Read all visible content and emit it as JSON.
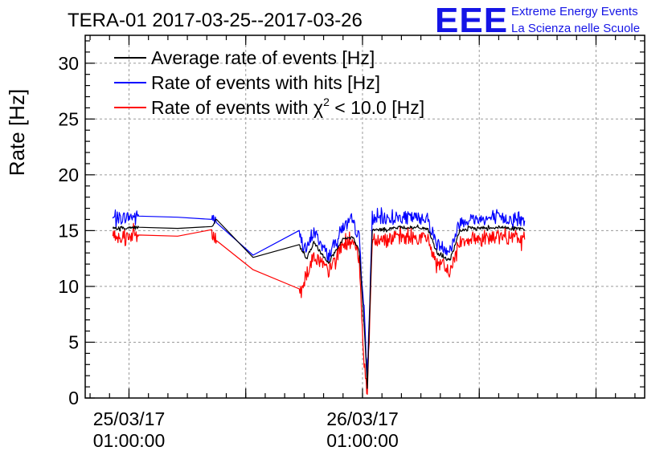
{
  "chart_data": {
    "type": "line",
    "title": "TERA-01 2017-03-25--2017-03-26",
    "ylabel": "Rate [Hz]",
    "xlabel": "",
    "ylim": [
      0,
      32.5
    ],
    "yticks": [
      "0",
      "5",
      "10",
      "15",
      "20",
      "25",
      "30"
    ],
    "xlim": [
      "2017-03-24 20:30:00",
      "2017-03-27 06:00:00"
    ],
    "x_date_ticks": [
      {
        "line1": "25/03/17",
        "line2": "01:00:00",
        "x": "2017-03-25 01:00:00"
      },
      {
        "line1": "26/03/17",
        "line2": "01:00:00",
        "x": "2017-03-26 01:00:00"
      }
    ],
    "grid": true,
    "legend_position": "top-left",
    "series": [
      {
        "name": "Average rate of events [Hz]",
        "name_prefix": "Average rate of events [Hz]",
        "name_sup": "",
        "name_suffix": "",
        "color": "#000000",
        "noise": 0.15,
        "x": [
          "2017-03-24 23:20",
          "2017-03-25 02:00",
          "2017-03-25 06:00",
          "2017-03-25 09:30",
          "2017-03-25 10:00",
          "2017-03-25 13:45",
          "2017-03-25 18:30",
          "2017-03-25 19:15",
          "2017-03-25 20:00",
          "2017-03-25 21:30",
          "2017-03-25 23:00",
          "2017-03-26 00:00",
          "2017-03-26 00:40",
          "2017-03-26 01:10",
          "2017-03-26 01:30",
          "2017-03-26 02:00",
          "2017-03-26 05:00",
          "2017-03-26 07:40",
          "2017-03-26 08:40",
          "2017-03-26 10:00",
          "2017-03-26 11:00",
          "2017-03-26 12:00",
          "2017-03-26 15:00",
          "2017-03-26 17:00",
          "2017-03-26 17:40"
        ],
        "y": [
          15.2,
          15.3,
          15.2,
          15.3,
          16.0,
          12.6,
          13.6,
          12.5,
          13.9,
          12.1,
          14.2,
          14.4,
          13.2,
          6.5,
          1.0,
          15.0,
          15.3,
          15.2,
          13.0,
          12.3,
          15.0,
          15.2,
          15.3,
          15.2,
          15.1
        ]
      },
      {
        "name": "Rate of events with hits [Hz]",
        "name_prefix": "Rate of events with hits [Hz]",
        "name_sup": "",
        "name_suffix": "",
        "color": "#0000ff",
        "noise": 0.55,
        "x": [
          "2017-03-24 23:20",
          "2017-03-25 02:00",
          "2017-03-25 06:00",
          "2017-03-25 09:30",
          "2017-03-25 10:00",
          "2017-03-25 13:45",
          "2017-03-25 18:30",
          "2017-03-25 19:15",
          "2017-03-25 20:00",
          "2017-03-25 21:30",
          "2017-03-25 23:00",
          "2017-03-26 00:00",
          "2017-03-26 00:40",
          "2017-03-26 01:10",
          "2017-03-26 01:30",
          "2017-03-26 02:00",
          "2017-03-26 05:00",
          "2017-03-26 07:40",
          "2017-03-26 08:40",
          "2017-03-26 10:00",
          "2017-03-26 11:00",
          "2017-03-26 12:00",
          "2017-03-26 15:00",
          "2017-03-26 17:00",
          "2017-03-26 17:40"
        ],
        "y": [
          16.1,
          16.3,
          16.2,
          16.3,
          15.7,
          12.8,
          14.6,
          13.2,
          14.9,
          12.7,
          15.4,
          15.7,
          14.4,
          7.5,
          1.8,
          16.0,
          16.2,
          16.1,
          13.8,
          13.2,
          15.8,
          16.0,
          16.1,
          16.0,
          15.9
        ]
      },
      {
        "name": "Rate of events with χ2 < 10.0 [Hz]",
        "name_prefix": "Rate of events with χ",
        "name_sup": "2",
        "name_suffix": " < 10.0 [Hz]",
        "color": "#ff0000",
        "noise": 0.6,
        "x": [
          "2017-03-24 23:20",
          "2017-03-25 02:00",
          "2017-03-25 06:00",
          "2017-03-25 09:30",
          "2017-03-25 10:00",
          "2017-03-25 13:45",
          "2017-03-25 18:30",
          "2017-03-25 19:15",
          "2017-03-25 20:00",
          "2017-03-25 21:30",
          "2017-03-25 23:00",
          "2017-03-26 00:00",
          "2017-03-26 00:40",
          "2017-03-26 01:10",
          "2017-03-26 01:30",
          "2017-03-26 02:00",
          "2017-03-26 05:00",
          "2017-03-26 07:40",
          "2017-03-26 08:40",
          "2017-03-26 10:00",
          "2017-03-26 11:00",
          "2017-03-26 12:00",
          "2017-03-26 15:00",
          "2017-03-26 17:00",
          "2017-03-26 17:40"
        ],
        "y": [
          14.5,
          14.6,
          14.5,
          14.6,
          14.1,
          11.5,
          9.5,
          11.0,
          12.8,
          11.3,
          13.8,
          14.0,
          12.5,
          3.0,
          0.3,
          14.2,
          14.4,
          14.3,
          12.0,
          11.3,
          14.1,
          14.3,
          14.4,
          14.3,
          14.2
        ]
      }
    ]
  },
  "logo": {
    "letters": "EEE",
    "line1": "Extreme Energy Events",
    "line2": "La Scienza nelle Scuole"
  }
}
